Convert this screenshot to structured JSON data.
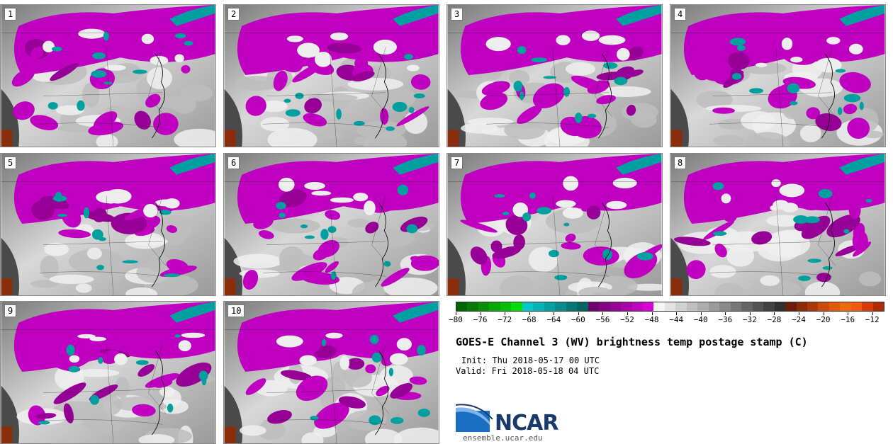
{
  "panels": [
    {
      "label": "1"
    },
    {
      "label": "2"
    },
    {
      "label": "3"
    },
    {
      "label": "4"
    },
    {
      "label": "5"
    },
    {
      "label": "6"
    },
    {
      "label": "7"
    },
    {
      "label": "8"
    },
    {
      "label": "9"
    },
    {
      "label": "10"
    }
  ],
  "colorbar": {
    "min": -80,
    "max": -10,
    "tick_labels": [
      "−80",
      "−76",
      "−72",
      "−68",
      "−64",
      "−60",
      "−56",
      "−52",
      "−48",
      "−44",
      "−40",
      "−36",
      "−32",
      "−28",
      "−24",
      "−20",
      "−16",
      "−12"
    ],
    "tick_values": [
      -80,
      -76,
      -72,
      -68,
      -64,
      -60,
      -56,
      -52,
      -48,
      -44,
      -40,
      -36,
      -32,
      -28,
      -24,
      -20,
      -16,
      -12
    ],
    "colors": [
      "#006400",
      "#007a00",
      "#009000",
      "#00a800",
      "#00c000",
      "#00dd00",
      "#00c8c8",
      "#00b4b4",
      "#00a0a0",
      "#008c8c",
      "#007878",
      "#006464",
      "#6e006e",
      "#820082",
      "#960096",
      "#aa00aa",
      "#c000c0",
      "#d600d6",
      "#f5f5f5",
      "#e3e3e3",
      "#d1d1d1",
      "#bfbfbf",
      "#adadad",
      "#9b9b9b",
      "#898989",
      "#777777",
      "#656565",
      "#535353",
      "#414141",
      "#303030",
      "#6b1f0a",
      "#8b2c0a",
      "#ab3a0a",
      "#cc4b0a",
      "#e05a0a",
      "#ee6a0a",
      "#f05a10",
      "#d83a08",
      "#b22a05"
    ]
  },
  "title": "GOES-E Channel 3 (WV) brightness temp postage stamp (C)",
  "init_text": "Init: Thu 2018-05-17 00 UTC",
  "valid_text": "Valid: Fri 2018-05-18 04 UTC",
  "logo": {
    "word": "NCAR",
    "url": "ensemble.ucar.edu"
  }
}
